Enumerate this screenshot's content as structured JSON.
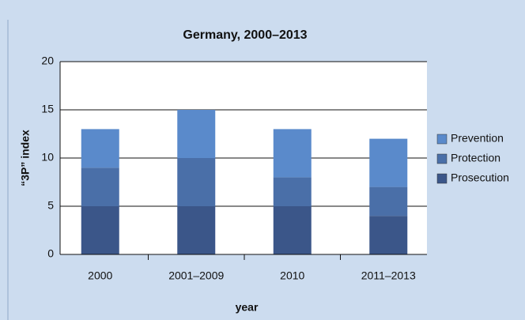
{
  "chart_data": {
    "type": "stacked_bar",
    "title": "Germany, 2000–2013",
    "x_label": "year",
    "y_label": "“3P” index",
    "categories": [
      "2000",
      "2001–2009",
      "2010",
      "2011–2013"
    ],
    "series": [
      {
        "name": "Prosecution",
        "color": "#3b5689",
        "values": [
          5,
          5,
          5,
          4
        ]
      },
      {
        "name": "Protection",
        "color": "#4a6fa8",
        "values": [
          4,
          5,
          3,
          3
        ]
      },
      {
        "name": "Prevention",
        "color": "#5a8acb",
        "values": [
          4,
          5,
          5,
          5
        ]
      }
    ],
    "ylim": [
      0,
      20
    ],
    "yticks": [
      0,
      5,
      10,
      15,
      20
    ],
    "grid": true,
    "legend": "right"
  }
}
